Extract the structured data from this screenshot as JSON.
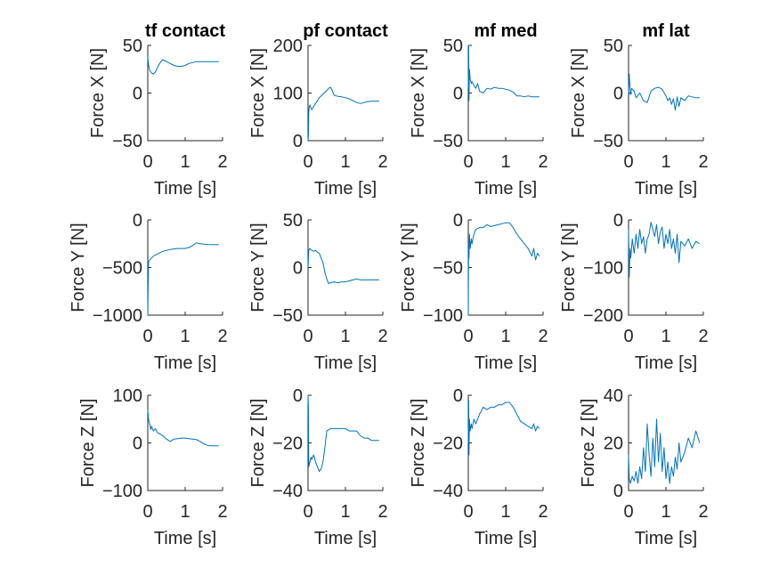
{
  "figure": {
    "background": "#ffffff",
    "axis_color": "#262626",
    "line_color": "#0072BD"
  },
  "chart_data": [
    {
      "type": "line",
      "title": "tf contact",
      "xlabel": "Time [s]",
      "ylabel": "Force X [N]",
      "xlim": [
        0,
        2
      ],
      "ylim": [
        -50,
        50
      ],
      "xticks": [
        0,
        1,
        2
      ],
      "yticks": [
        -50,
        0,
        50
      ],
      "series": [
        {
          "x": [
            0,
            0.02,
            0.05,
            0.08,
            0.1,
            0.15,
            0.2,
            0.25,
            0.3,
            0.35,
            0.4,
            0.45,
            0.5,
            0.55,
            0.6,
            0.7,
            0.8,
            0.9,
            1.0,
            1.1,
            1.2,
            1.3,
            1.4,
            1.5,
            1.6,
            1.7,
            1.8,
            1.9
          ],
          "y": [
            38,
            30,
            24,
            22,
            21,
            20,
            22,
            26,
            30,
            33,
            35,
            34,
            33,
            32,
            31,
            29,
            28,
            28,
            29,
            31,
            32,
            33,
            33,
            33,
            33,
            33,
            33,
            33
          ]
        }
      ]
    },
    {
      "type": "line",
      "title": "pf contact",
      "xlabel": "Time [s]",
      "ylabel": "Force X [N]",
      "xlim": [
        0,
        2
      ],
      "ylim": [
        0,
        200
      ],
      "xticks": [
        0,
        1,
        2
      ],
      "yticks": [
        0,
        100,
        200
      ],
      "series": [
        {
          "x": [
            0,
            0.01,
            0.02,
            0.03,
            0.05,
            0.08,
            0.1,
            0.15,
            0.2,
            0.3,
            0.4,
            0.5,
            0.55,
            0.6,
            0.65,
            0.7,
            0.8,
            0.9,
            1.0,
            1.1,
            1.2,
            1.3,
            1.4,
            1.5,
            1.6,
            1.7,
            1.8,
            1.9
          ],
          "y": [
            0,
            10,
            60,
            70,
            75,
            68,
            65,
            72,
            78,
            90,
            98,
            105,
            110,
            112,
            105,
            95,
            93,
            92,
            90,
            88,
            84,
            80,
            78,
            80,
            82,
            83,
            83,
            83
          ]
        }
      ]
    },
    {
      "type": "line",
      "title": "mf med",
      "xlabel": "Time [s]",
      "ylabel": "Force X [N]",
      "xlim": [
        0,
        2
      ],
      "ylim": [
        -50,
        50
      ],
      "xticks": [
        0,
        1,
        2
      ],
      "yticks": [
        -50,
        0,
        50
      ],
      "series": [
        {
          "x": [
            0,
            0.01,
            0.02,
            0.03,
            0.05,
            0.08,
            0.1,
            0.15,
            0.2,
            0.25,
            0.3,
            0.4,
            0.5,
            0.6,
            0.7,
            0.8,
            0.9,
            1.0,
            1.1,
            1.2,
            1.3,
            1.4,
            1.5,
            1.6,
            1.7,
            1.8,
            1.9
          ],
          "y": [
            5,
            50,
            -8,
            25,
            15,
            10,
            12,
            8,
            5,
            10,
            2,
            0,
            5,
            4,
            6,
            5,
            5,
            4,
            3,
            1,
            -3,
            -3,
            -4,
            -3,
            -4,
            -4,
            -4
          ]
        }
      ]
    },
    {
      "type": "line",
      "title": "mf lat",
      "xlabel": "Time [s]",
      "ylabel": "Force X [N]",
      "xlim": [
        0,
        2
      ],
      "ylim": [
        -50,
        50
      ],
      "xticks": [
        0,
        1,
        2
      ],
      "yticks": [
        -50,
        0,
        50
      ],
      "series": [
        {
          "x": [
            0,
            0.02,
            0.05,
            0.08,
            0.1,
            0.15,
            0.2,
            0.3,
            0.4,
            0.5,
            0.6,
            0.7,
            0.8,
            0.9,
            1.0,
            1.05,
            1.1,
            1.15,
            1.2,
            1.25,
            1.3,
            1.35,
            1.4,
            1.5,
            1.6,
            1.7,
            1.8,
            1.9
          ],
          "y": [
            0,
            20,
            -2,
            5,
            4,
            2,
            -5,
            0,
            -8,
            -10,
            2,
            5,
            6,
            4,
            -3,
            -8,
            -5,
            -12,
            -6,
            -18,
            -4,
            -14,
            -5,
            -8,
            -3,
            -4,
            -5,
            -5
          ]
        }
      ]
    },
    {
      "type": "line",
      "title": "",
      "xlabel": "Time [s]",
      "ylabel": "Force Y [N]",
      "xlim": [
        0,
        2
      ],
      "ylim": [
        -1000,
        0
      ],
      "xticks": [
        0,
        1,
        2
      ],
      "yticks": [
        -1000,
        -500,
        0
      ],
      "series": [
        {
          "x": [
            0,
            0.01,
            0.02,
            0.05,
            0.08,
            0.1,
            0.15,
            0.2,
            0.3,
            0.4,
            0.5,
            0.6,
            0.7,
            0.8,
            0.9,
            1.0,
            1.1,
            1.2,
            1.3,
            1.4,
            1.5,
            1.6,
            1.7,
            1.8,
            1.9
          ],
          "y": [
            -1000,
            -700,
            -450,
            -420,
            -410,
            -400,
            -380,
            -370,
            -350,
            -330,
            -320,
            -310,
            -305,
            -300,
            -300,
            -300,
            -290,
            -270,
            -240,
            -250,
            -255,
            -258,
            -260,
            -260,
            -260
          ]
        }
      ]
    },
    {
      "type": "line",
      "title": "",
      "xlabel": "Time [s]",
      "ylabel": "Force Y [N]",
      "xlim": [
        0,
        2
      ],
      "ylim": [
        -50,
        50
      ],
      "xticks": [
        0,
        1,
        2
      ],
      "yticks": [
        -50,
        0,
        50
      ],
      "series": [
        {
          "x": [
            0,
            0.02,
            0.05,
            0.1,
            0.15,
            0.2,
            0.25,
            0.3,
            0.35,
            0.4,
            0.45,
            0.5,
            0.55,
            0.6,
            0.7,
            0.8,
            0.9,
            1.0,
            1.1,
            1.2,
            1.3,
            1.4,
            1.5,
            1.6,
            1.7,
            1.8,
            1.9
          ],
          "y": [
            0,
            18,
            20,
            18,
            17,
            18,
            16,
            15,
            10,
            5,
            -5,
            -12,
            -17,
            -16,
            -15,
            -16,
            -15,
            -15,
            -14,
            -13,
            -12,
            -13,
            -13,
            -13,
            -13,
            -13,
            -13
          ]
        }
      ]
    },
    {
      "type": "line",
      "title": "",
      "xlabel": "Time [s]",
      "ylabel": "Force Y [N]",
      "xlim": [
        0,
        2
      ],
      "ylim": [
        -100,
        0
      ],
      "xticks": [
        0,
        1,
        2
      ],
      "yticks": [
        -100,
        -50,
        0
      ],
      "series": [
        {
          "x": [
            0,
            0.01,
            0.02,
            0.03,
            0.05,
            0.08,
            0.1,
            0.15,
            0.2,
            0.3,
            0.4,
            0.5,
            0.6,
            0.7,
            0.8,
            0.9,
            1.0,
            1.1,
            1.2,
            1.3,
            1.4,
            1.5,
            1.6,
            1.7,
            1.75,
            1.8,
            1.85,
            1.9
          ],
          "y": [
            -100,
            -25,
            -40,
            -15,
            -30,
            -20,
            -25,
            -15,
            -10,
            -8,
            -8,
            -5,
            -7,
            -6,
            -5,
            -4,
            -3,
            -3,
            -8,
            -15,
            -20,
            -25,
            -30,
            -38,
            -30,
            -42,
            -35,
            -38
          ]
        }
      ]
    },
    {
      "type": "line",
      "title": "",
      "xlabel": "Time [s]",
      "ylabel": "Force Y [N]",
      "xlim": [
        0,
        2
      ],
      "ylim": [
        -200,
        0
      ],
      "xticks": [
        0,
        1,
        2
      ],
      "yticks": [
        -200,
        -100,
        0
      ],
      "series": [
        {
          "x": [
            0,
            0.02,
            0.04,
            0.06,
            0.1,
            0.15,
            0.2,
            0.25,
            0.3,
            0.35,
            0.4,
            0.45,
            0.5,
            0.55,
            0.6,
            0.65,
            0.7,
            0.75,
            0.8,
            0.85,
            0.9,
            0.95,
            1.0,
            1.05,
            1.1,
            1.15,
            1.2,
            1.25,
            1.3,
            1.35,
            1.4,
            1.5,
            1.6,
            1.7,
            1.8,
            1.9
          ],
          "y": [
            -20,
            -120,
            -60,
            -80,
            -40,
            -70,
            -30,
            -60,
            -20,
            -50,
            -35,
            -70,
            -40,
            -30,
            -5,
            -20,
            -35,
            -10,
            -50,
            -25,
            -15,
            -60,
            -30,
            -50,
            -20,
            -60,
            -40,
            -70,
            -30,
            -90,
            -45,
            -55,
            -40,
            -60,
            -45,
            -50
          ]
        }
      ]
    },
    {
      "type": "line",
      "title": "",
      "xlabel": "Time [s]",
      "ylabel": "Force Z [N]",
      "xlim": [
        0,
        2
      ],
      "ylim": [
        -100,
        100
      ],
      "xticks": [
        0,
        1,
        2
      ],
      "yticks": [
        -100,
        0,
        100
      ],
      "series": [
        {
          "x": [
            0,
            0.02,
            0.05,
            0.08,
            0.1,
            0.15,
            0.2,
            0.25,
            0.3,
            0.4,
            0.5,
            0.6,
            0.7,
            0.8,
            0.9,
            1.0,
            1.1,
            1.2,
            1.3,
            1.4,
            1.5,
            1.6,
            1.7,
            1.8,
            1.9
          ],
          "y": [
            70,
            50,
            40,
            28,
            35,
            25,
            30,
            22,
            20,
            15,
            8,
            3,
            8,
            9,
            10,
            10,
            9,
            8,
            7,
            3,
            -2,
            -5,
            -6,
            -6,
            -6
          ]
        }
      ]
    },
    {
      "type": "line",
      "title": "",
      "xlabel": "Time [s]",
      "ylabel": "Force Z [N]",
      "xlim": [
        0,
        2
      ],
      "ylim": [
        -40,
        0
      ],
      "xticks": [
        0,
        1,
        2
      ],
      "yticks": [
        -40,
        -20,
        0
      ],
      "series": [
        {
          "x": [
            0,
            0.01,
            0.02,
            0.05,
            0.08,
            0.1,
            0.15,
            0.2,
            0.25,
            0.3,
            0.35,
            0.4,
            0.45,
            0.5,
            0.6,
            0.7,
            0.8,
            0.9,
            1.0,
            1.1,
            1.2,
            1.3,
            1.4,
            1.5,
            1.6,
            1.7,
            1.8,
            1.9
          ],
          "y": [
            0,
            -5,
            -30,
            -28,
            -26,
            -27,
            -25,
            -28,
            -30,
            -32,
            -31,
            -28,
            -22,
            -15,
            -14,
            -14,
            -14,
            -14,
            -14,
            -15,
            -15,
            -15,
            -17,
            -18,
            -18,
            -19,
            -19,
            -19
          ]
        }
      ]
    },
    {
      "type": "line",
      "title": "",
      "xlabel": "Time [s]",
      "ylabel": "Force Z [N]",
      "xlim": [
        0,
        2
      ],
      "ylim": [
        -40,
        0
      ],
      "xticks": [
        0,
        1,
        2
      ],
      "yticks": [
        -40,
        -20,
        0
      ],
      "series": [
        {
          "x": [
            0,
            0.01,
            0.02,
            0.03,
            0.05,
            0.08,
            0.1,
            0.15,
            0.2,
            0.3,
            0.4,
            0.5,
            0.6,
            0.7,
            0.8,
            0.9,
            1.0,
            1.1,
            1.2,
            1.3,
            1.4,
            1.5,
            1.6,
            1.7,
            1.75,
            1.8,
            1.85,
            1.9
          ],
          "y": [
            -20,
            -2,
            -25,
            -10,
            -15,
            -12,
            -14,
            -10,
            -12,
            -8,
            -5,
            -6,
            -5,
            -5,
            -4,
            -4,
            -3,
            -3,
            -5,
            -8,
            -11,
            -12,
            -13,
            -14,
            -12,
            -15,
            -13,
            -14
          ]
        }
      ]
    },
    {
      "type": "line",
      "title": "",
      "xlabel": "Time [s]",
      "ylabel": "Force Z [N]",
      "xlim": [
        0,
        2
      ],
      "ylim": [
        0,
        40
      ],
      "xticks": [
        0,
        1,
        2
      ],
      "yticks": [
        0,
        20,
        40
      ],
      "series": [
        {
          "x": [
            0,
            0.02,
            0.05,
            0.1,
            0.15,
            0.2,
            0.25,
            0.3,
            0.35,
            0.4,
            0.45,
            0.5,
            0.55,
            0.6,
            0.65,
            0.7,
            0.75,
            0.8,
            0.85,
            0.9,
            0.95,
            1.0,
            1.05,
            1.1,
            1.15,
            1.2,
            1.25,
            1.3,
            1.35,
            1.4,
            1.5,
            1.6,
            1.7,
            1.8,
            1.9
          ],
          "y": [
            15,
            5,
            3,
            6,
            4,
            8,
            3,
            10,
            5,
            18,
            8,
            28,
            15,
            6,
            22,
            10,
            30,
            12,
            24,
            8,
            18,
            5,
            12,
            3,
            10,
            6,
            14,
            9,
            20,
            12,
            16,
            22,
            18,
            25,
            20
          ]
        }
      ]
    }
  ]
}
